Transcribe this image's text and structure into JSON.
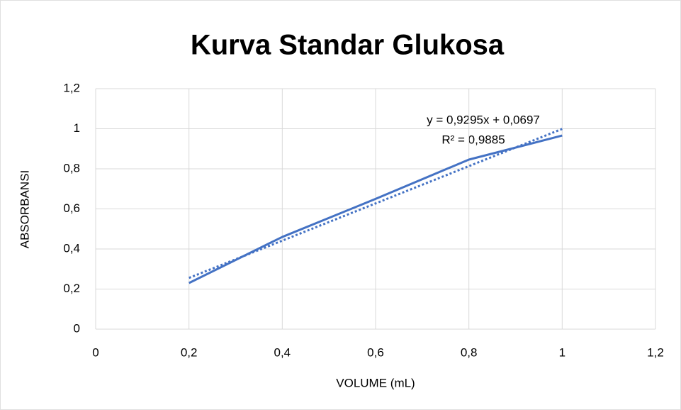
{
  "chart_data": {
    "type": "line",
    "title": "Kurva Standar Glukosa",
    "xlabel": "VOLUME (mL)",
    "ylabel": "ABSORBANSI",
    "x": [
      0.2,
      0.4,
      0.6,
      0.8,
      1
    ],
    "values": [
      0.23,
      0.46,
      0.65,
      0.846,
      0.966
    ],
    "color": "#4472c4",
    "trendline": {
      "x": [
        0.2,
        1
      ],
      "values": [
        0.2556,
        0.9992
      ],
      "color": "#4472c4",
      "dashed": true
    },
    "annotations": [
      "y = 0,9295x + 0,0697",
      "R² = 0,9885"
    ],
    "xlim": [
      0,
      1.2
    ],
    "xticks": [
      0,
      {
        "value": 0.2,
        "label": "0,2"
      },
      {
        "value": 0.4,
        "label": "0,4"
      },
      {
        "value": 0.6,
        "label": "0,6"
      },
      {
        "value": 0.8,
        "label": "0,8"
      },
      1,
      {
        "value": 1.2,
        "label": "1,2"
      }
    ],
    "ylim": [
      0,
      1.2
    ],
    "yticks": [
      0,
      {
        "value": 0.2,
        "label": "0,2"
      },
      {
        "value": 0.4,
        "label": "0,4"
      },
      {
        "value": 0.6,
        "label": "0,6"
      },
      {
        "value": 0.8,
        "label": "0,8"
      },
      1,
      {
        "value": 1.2,
        "label": "1,2"
      }
    ],
    "grid": true
  }
}
